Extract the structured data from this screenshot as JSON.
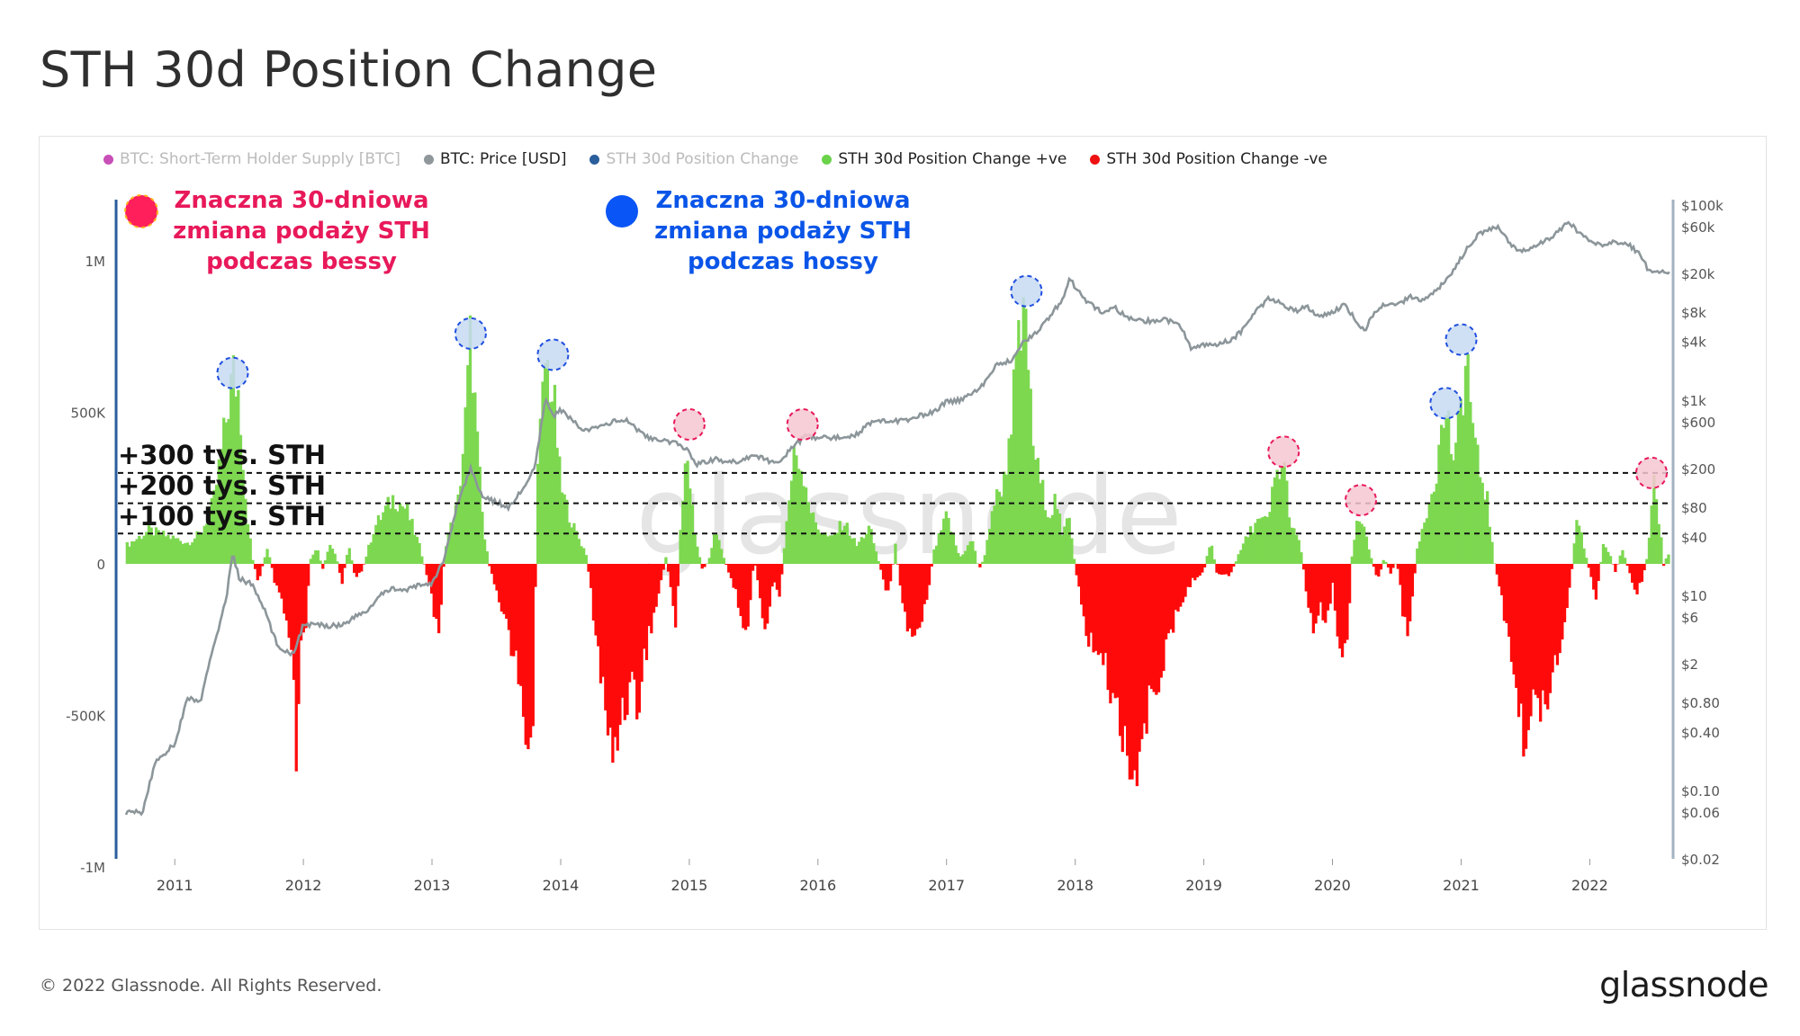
{
  "page": {
    "title": "STH 30d Position Change",
    "footer": "© 2022 Glassnode. All Rights Reserved.",
    "logo": "glassnode",
    "watermark": "glassnode"
  },
  "legend": [
    {
      "label": "BTC: Short-Term Holder Supply [BTC]",
      "color": "#c94fb8",
      "dim": true
    },
    {
      "label": "BTC: Price [USD]",
      "color": "#8f979b",
      "dim": false
    },
    {
      "label": "STH 30d Position Change",
      "color": "#2a5e9c",
      "dim": true
    },
    {
      "label": "STH 30d Position Change +ve",
      "color": "#6ad34a",
      "dim": false
    },
    {
      "label": "STH 30d Position Change -ve",
      "color": "#ee1111",
      "dim": false
    }
  ],
  "annotations": {
    "bear": {
      "lines": [
        "Znaczna 30-dniowa",
        "zmiana podaży STH",
        "podczas bessy"
      ],
      "color": "#e8195a"
    },
    "bull": {
      "lines": [
        "Znaczna 30-dniowa",
        "zmiana podaży STH",
        "podczas hossy"
      ],
      "color": "#0a55e8"
    },
    "thresholds": [
      {
        "label": "+300 tys. STH",
        "value": 300000
      },
      {
        "label": "+200 tys. STH",
        "value": 200000
      },
      {
        "label": "+100 tys. STH",
        "value": 100000
      }
    ]
  },
  "chart_data": {
    "type": "area",
    "title": "STH 30d Position Change",
    "left_axis": {
      "ticks": [
        "1M",
        "500K",
        "0",
        "-500K",
        "-1M"
      ],
      "tick_values": [
        1000000,
        500000,
        0,
        -500000,
        -1000000
      ],
      "ylim": [
        -1000000,
        1200000
      ]
    },
    "right_axis": {
      "scale": "log",
      "ticks": [
        "$100k",
        "$60k",
        "$20k",
        "$8k",
        "$4k",
        "$1k",
        "$600",
        "$200",
        "$80",
        "$40",
        "$10",
        "$6",
        "$2",
        "$0.80",
        "$0.40",
        "$0.10",
        "$0.06",
        "$0.02"
      ],
      "tick_values": [
        100000,
        60000,
        20000,
        8000,
        4000,
        1000,
        600,
        200,
        80,
        40,
        10,
        6,
        2,
        0.8,
        0.4,
        0.1,
        0.06,
        0.02
      ]
    },
    "x_axis": {
      "ticks": [
        "2011",
        "2012",
        "2013",
        "2014",
        "2015",
        "2016",
        "2017",
        "2018",
        "2019",
        "2020",
        "2021",
        "2022"
      ],
      "tick_values": [
        2011,
        2012,
        2013,
        2014,
        2015,
        2016,
        2017,
        2018,
        2019,
        2020,
        2021,
        2022
      ],
      "xlim": [
        2010.6,
        2022.62
      ]
    },
    "position_change": [
      [
        2010.62,
        60000
      ],
      [
        2010.8,
        110000
      ],
      [
        2010.95,
        90000
      ],
      [
        2011.1,
        70000
      ],
      [
        2011.2,
        100000
      ],
      [
        2011.3,
        200000
      ],
      [
        2011.38,
        420000
      ],
      [
        2011.45,
        630000
      ],
      [
        2011.5,
        560000
      ],
      [
        2011.55,
        220000
      ],
      [
        2011.6,
        20000
      ],
      [
        2011.65,
        -60000
      ],
      [
        2011.72,
        60000
      ],
      [
        2011.78,
        -70000
      ],
      [
        2011.85,
        -160000
      ],
      [
        2011.92,
        -340000
      ],
      [
        2011.95,
        -790000
      ],
      [
        2011.97,
        -330000
      ],
      [
        2012.02,
        -200000
      ],
      [
        2012.05,
        10000
      ],
      [
        2012.1,
        60000
      ],
      [
        2012.15,
        -20000
      ],
      [
        2012.2,
        70000
      ],
      [
        2012.25,
        30000
      ],
      [
        2012.3,
        -60000
      ],
      [
        2012.35,
        60000
      ],
      [
        2012.4,
        -40000
      ],
      [
        2012.45,
        -30000
      ],
      [
        2012.55,
        120000
      ],
      [
        2012.7,
        220000
      ],
      [
        2012.8,
        180000
      ],
      [
        2012.9,
        60000
      ],
      [
        2012.95,
        -20000
      ],
      [
        2013.0,
        -120000
      ],
      [
        2013.05,
        -240000
      ],
      [
        2013.1,
        60000
      ],
      [
        2013.2,
        200000
      ],
      [
        2013.25,
        420000
      ],
      [
        2013.3,
        760000
      ],
      [
        2013.35,
        400000
      ],
      [
        2013.4,
        100000
      ],
      [
        2013.45,
        -20000
      ],
      [
        2013.55,
        -150000
      ],
      [
        2013.65,
        -330000
      ],
      [
        2013.72,
        -550000
      ],
      [
        2013.78,
        -580000
      ],
      [
        2013.82,
        300000
      ],
      [
        2013.88,
        680000
      ],
      [
        2013.95,
        520000
      ],
      [
        2014.0,
        250000
      ],
      [
        2014.1,
        120000
      ],
      [
        2014.2,
        30000
      ],
      [
        2014.25,
        -150000
      ],
      [
        2014.35,
        -500000
      ],
      [
        2014.4,
        -660000
      ],
      [
        2014.45,
        -520000
      ],
      [
        2014.55,
        -380000
      ],
      [
        2014.6,
        -480000
      ],
      [
        2014.65,
        -300000
      ],
      [
        2014.75,
        -120000
      ],
      [
        2014.82,
        30000
      ],
      [
        2014.85,
        -80000
      ],
      [
        2014.9,
        -210000
      ],
      [
        2014.92,
        50000
      ],
      [
        2014.98,
        380000
      ],
      [
        2015.0,
        280000
      ],
      [
        2015.05,
        80000
      ],
      [
        2015.1,
        -20000
      ],
      [
        2015.15,
        10000
      ],
      [
        2015.2,
        120000
      ],
      [
        2015.25,
        40000
      ],
      [
        2015.3,
        -20000
      ],
      [
        2015.4,
        -150000
      ],
      [
        2015.45,
        -260000
      ],
      [
        2015.5,
        20000
      ],
      [
        2015.55,
        -100000
      ],
      [
        2015.6,
        -260000
      ],
      [
        2015.65,
        -40000
      ],
      [
        2015.7,
        -120000
      ],
      [
        2015.75,
        120000
      ],
      [
        2015.82,
        380000
      ],
      [
        2015.9,
        280000
      ],
      [
        2015.95,
        160000
      ],
      [
        2016.0,
        120000
      ],
      [
        2016.1,
        80000
      ],
      [
        2016.2,
        140000
      ],
      [
        2016.3,
        60000
      ],
      [
        2016.4,
        120000
      ],
      [
        2016.5,
        -40000
      ],
      [
        2016.55,
        -110000
      ],
      [
        2016.6,
        60000
      ],
      [
        2016.65,
        -100000
      ],
      [
        2016.7,
        -230000
      ],
      [
        2016.75,
        -220000
      ],
      [
        2016.8,
        -180000
      ],
      [
        2016.85,
        -100000
      ],
      [
        2016.9,
        40000
      ],
      [
        2017.0,
        160000
      ],
      [
        2017.1,
        20000
      ],
      [
        2017.2,
        80000
      ],
      [
        2017.25,
        -20000
      ],
      [
        2017.3,
        30000
      ],
      [
        2017.35,
        180000
      ],
      [
        2017.45,
        280000
      ],
      [
        2017.55,
        680000
      ],
      [
        2017.62,
        820000
      ],
      [
        2017.66,
        430000
      ],
      [
        2017.72,
        280000
      ],
      [
        2017.8,
        160000
      ],
      [
        2017.85,
        220000
      ],
      [
        2017.9,
        80000
      ],
      [
        2017.95,
        180000
      ],
      [
        2018.0,
        -20000
      ],
      [
        2018.1,
        -250000
      ],
      [
        2018.2,
        -300000
      ],
      [
        2018.3,
        -450000
      ],
      [
        2018.4,
        -600000
      ],
      [
        2018.48,
        -700000
      ],
      [
        2018.52,
        -590000
      ],
      [
        2018.6,
        -420000
      ],
      [
        2018.7,
        -300000
      ],
      [
        2018.8,
        -150000
      ],
      [
        2018.9,
        -60000
      ],
      [
        2019.0,
        -20000
      ],
      [
        2019.05,
        80000
      ],
      [
        2019.1,
        -30000
      ],
      [
        2019.2,
        -40000
      ],
      [
        2019.3,
        60000
      ],
      [
        2019.4,
        140000
      ],
      [
        2019.5,
        140000
      ],
      [
        2019.55,
        280000
      ],
      [
        2019.62,
        330000
      ],
      [
        2019.68,
        120000
      ],
      [
        2019.75,
        60000
      ],
      [
        2019.8,
        -100000
      ],
      [
        2019.85,
        -230000
      ],
      [
        2019.9,
        -120000
      ],
      [
        2019.95,
        -200000
      ],
      [
        2020.0,
        -60000
      ],
      [
        2020.05,
        -300000
      ],
      [
        2020.08,
        -340000
      ],
      [
        2020.12,
        -200000
      ],
      [
        2020.15,
        20000
      ],
      [
        2020.18,
        120000
      ],
      [
        2020.22,
        140000
      ],
      [
        2020.25,
        100000
      ],
      [
        2020.3,
        20000
      ],
      [
        2020.35,
        -60000
      ],
      [
        2020.4,
        20000
      ],
      [
        2020.45,
        -30000
      ],
      [
        2020.5,
        10000
      ],
      [
        2020.55,
        -170000
      ],
      [
        2020.6,
        -230000
      ],
      [
        2020.65,
        30000
      ],
      [
        2020.7,
        120000
      ],
      [
        2020.8,
        300000
      ],
      [
        2020.88,
        520000
      ],
      [
        2020.92,
        400000
      ],
      [
        2020.95,
        300000
      ],
      [
        2021.0,
        560000
      ],
      [
        2021.05,
        670000
      ],
      [
        2021.1,
        380000
      ],
      [
        2021.2,
        220000
      ],
      [
        2021.25,
        20000
      ],
      [
        2021.35,
        -200000
      ],
      [
        2021.45,
        -480000
      ],
      [
        2021.5,
        -650000
      ],
      [
        2021.55,
        -480000
      ],
      [
        2021.65,
        -440000
      ],
      [
        2021.75,
        -300000
      ],
      [
        2021.8,
        -180000
      ],
      [
        2021.85,
        -60000
      ],
      [
        2021.9,
        160000
      ],
      [
        2021.95,
        60000
      ],
      [
        2022.0,
        -30000
      ],
      [
        2022.05,
        -120000
      ],
      [
        2022.1,
        60000
      ],
      [
        2022.15,
        40000
      ],
      [
        2022.2,
        -30000
      ],
      [
        2022.25,
        60000
      ],
      [
        2022.3,
        -20000
      ],
      [
        2022.35,
        -100000
      ],
      [
        2022.4,
        -60000
      ],
      [
        2022.45,
        30000
      ],
      [
        2022.5,
        260000
      ],
      [
        2022.55,
        100000
      ],
      [
        2022.58,
        -40000
      ],
      [
        2022.6,
        60000
      ],
      [
        2022.62,
        0
      ]
    ],
    "btc_price": [
      [
        2010.62,
        0.06
      ],
      [
        2010.75,
        0.06
      ],
      [
        2010.85,
        0.2
      ],
      [
        2011.0,
        0.3
      ],
      [
        2011.1,
        0.9
      ],
      [
        2011.2,
        0.8
      ],
      [
        2011.3,
        3
      ],
      [
        2011.4,
        9
      ],
      [
        2011.45,
        28
      ],
      [
        2011.5,
        15
      ],
      [
        2011.6,
        13
      ],
      [
        2011.7,
        7
      ],
      [
        2011.8,
        3
      ],
      [
        2011.92,
        2.5
      ],
      [
        2012.0,
        5
      ],
      [
        2012.1,
        5
      ],
      [
        2012.2,
        4.9
      ],
      [
        2012.3,
        5
      ],
      [
        2012.4,
        6
      ],
      [
        2012.5,
        7
      ],
      [
        2012.6,
        10
      ],
      [
        2012.7,
        12
      ],
      [
        2012.8,
        11
      ],
      [
        2012.9,
        13
      ],
      [
        2013.0,
        13
      ],
      [
        2013.1,
        25
      ],
      [
        2013.2,
        90
      ],
      [
        2013.3,
        200
      ],
      [
        2013.4,
        100
      ],
      [
        2013.5,
        90
      ],
      [
        2013.6,
        80
      ],
      [
        2013.7,
        120
      ],
      [
        2013.8,
        200
      ],
      [
        2013.88,
        1000
      ],
      [
        2013.95,
        700
      ],
      [
        2014.0,
        800
      ],
      [
        2014.1,
        600
      ],
      [
        2014.2,
        480
      ],
      [
        2014.4,
        600
      ],
      [
        2014.5,
        630
      ],
      [
        2014.6,
        500
      ],
      [
        2014.7,
        400
      ],
      [
        2014.8,
        380
      ],
      [
        2014.9,
        360
      ],
      [
        2015.0,
        300
      ],
      [
        2015.05,
        220
      ],
      [
        2015.2,
        250
      ],
      [
        2015.3,
        230
      ],
      [
        2015.4,
        240
      ],
      [
        2015.5,
        280
      ],
      [
        2015.6,
        240
      ],
      [
        2015.7,
        240
      ],
      [
        2015.8,
        320
      ],
      [
        2015.9,
        430
      ],
      [
        2016.0,
        410
      ],
      [
        2016.2,
        420
      ],
      [
        2016.3,
        450
      ],
      [
        2016.45,
        650
      ],
      [
        2016.5,
        620
      ],
      [
        2016.7,
        610
      ],
      [
        2016.8,
        700
      ],
      [
        2016.9,
        750
      ],
      [
        2017.0,
        970
      ],
      [
        2017.1,
        1000
      ],
      [
        2017.2,
        1200
      ],
      [
        2017.3,
        1500
      ],
      [
        2017.4,
        2400
      ],
      [
        2017.5,
        2500
      ],
      [
        2017.6,
        4000
      ],
      [
        2017.7,
        5000
      ],
      [
        2017.8,
        7000
      ],
      [
        2017.9,
        11000
      ],
      [
        2017.96,
        18000
      ],
      [
        2018.0,
        14000
      ],
      [
        2018.1,
        10000
      ],
      [
        2018.2,
        8000
      ],
      [
        2018.3,
        9000
      ],
      [
        2018.4,
        7000
      ],
      [
        2018.5,
        6500
      ],
      [
        2018.6,
        6500
      ],
      [
        2018.7,
        6600
      ],
      [
        2018.8,
        6400
      ],
      [
        2018.9,
        3500
      ],
      [
        2019.0,
        3700
      ],
      [
        2019.1,
        3800
      ],
      [
        2019.2,
        4000
      ],
      [
        2019.3,
        5200
      ],
      [
        2019.4,
        8000
      ],
      [
        2019.5,
        11000
      ],
      [
        2019.6,
        10000
      ],
      [
        2019.7,
        8200
      ],
      [
        2019.8,
        9000
      ],
      [
        2019.9,
        7300
      ],
      [
        2020.0,
        8000
      ],
      [
        2020.1,
        9500
      ],
      [
        2020.2,
        6000
      ],
      [
        2020.25,
        5000
      ],
      [
        2020.3,
        7000
      ],
      [
        2020.4,
        9500
      ],
      [
        2020.5,
        9200
      ],
      [
        2020.6,
        11500
      ],
      [
        2020.7,
        10700
      ],
      [
        2020.8,
        13000
      ],
      [
        2020.9,
        18000
      ],
      [
        2021.0,
        29000
      ],
      [
        2021.1,
        45000
      ],
      [
        2021.2,
        57000
      ],
      [
        2021.3,
        58000
      ],
      [
        2021.4,
        37000
      ],
      [
        2021.5,
        33000
      ],
      [
        2021.6,
        40000
      ],
      [
        2021.7,
        47000
      ],
      [
        2021.8,
        61000
      ],
      [
        2021.85,
        64000
      ],
      [
        2021.95,
        47000
      ],
      [
        2022.0,
        43000
      ],
      [
        2022.1,
        38000
      ],
      [
        2022.2,
        42000
      ],
      [
        2022.3,
        40000
      ],
      [
        2022.4,
        30000
      ],
      [
        2022.45,
        22000
      ],
      [
        2022.5,
        20000
      ],
      [
        2022.55,
        21000
      ],
      [
        2022.62,
        21000
      ]
    ],
    "highlights": [
      {
        "x": 2011.45,
        "y": 630000,
        "kind": "bull"
      },
      {
        "x": 2013.3,
        "y": 760000,
        "kind": "bull"
      },
      {
        "x": 2013.94,
        "y": 690000,
        "kind": "bull"
      },
      {
        "x": 2015.0,
        "y": 460000,
        "kind": "bear"
      },
      {
        "x": 2015.88,
        "y": 460000,
        "kind": "bear"
      },
      {
        "x": 2017.62,
        "y": 900000,
        "kind": "bull"
      },
      {
        "x": 2019.62,
        "y": 370000,
        "kind": "bear"
      },
      {
        "x": 2020.22,
        "y": 210000,
        "kind": "bear"
      },
      {
        "x": 2020.88,
        "y": 530000,
        "kind": "bull"
      },
      {
        "x": 2021.0,
        "y": 740000,
        "kind": "bull"
      },
      {
        "x": 2022.48,
        "y": 300000,
        "kind": "bear"
      }
    ]
  }
}
